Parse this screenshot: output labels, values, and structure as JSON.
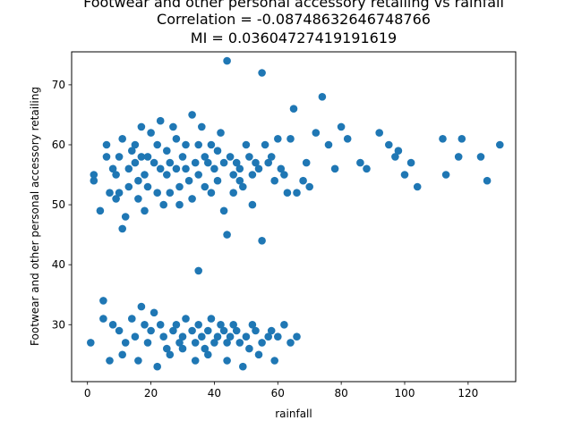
{
  "chart_data": {
    "type": "scatter",
    "title_lines": [
      "Footwear and other personal accessory retailing vs rainfall",
      "Correlation = -0.08748632646748766",
      "MI = 0.03604727419191619"
    ],
    "xlabel": "rainfall",
    "ylabel": "Footwear and other personal accessory retailing",
    "xlim": [
      -5,
      135
    ],
    "ylim": [
      20.5,
      75.5
    ],
    "x_ticks": [
      0,
      20,
      40,
      60,
      80,
      100,
      120
    ],
    "y_ticks": [
      30,
      40,
      50,
      60,
      70
    ],
    "grid": false,
    "point_color": "#1f77b4",
    "series": [
      {
        "x": [
          1,
          2,
          2,
          4,
          5,
          5,
          6,
          6,
          7,
          8,
          9,
          9,
          10,
          10,
          11,
          11,
          12,
          13,
          13,
          14,
          15,
          15,
          16,
          16,
          17,
          17,
          18,
          18,
          19,
          19,
          20,
          21,
          22,
          22,
          23,
          23,
          24,
          25,
          25,
          26,
          26,
          27,
          28,
          28,
          29,
          29,
          30,
          31,
          31,
          32,
          33,
          33,
          34,
          35,
          35,
          36,
          37,
          37,
          38,
          39,
          39,
          40,
          41,
          41,
          42,
          43,
          43,
          44,
          45,
          46,
          46,
          47,
          48,
          48,
          49,
          50,
          51,
          52,
          52,
          53,
          54,
          55,
          56,
          57,
          58,
          59,
          60,
          61,
          62,
          63,
          64,
          65,
          66,
          68,
          69,
          70,
          72,
          74,
          76,
          78,
          80,
          82,
          86,
          88,
          92,
          95,
          97,
          98,
          100,
          102,
          104,
          112,
          113,
          117,
          118,
          124,
          126,
          130,
          8,
          10,
          12,
          14,
          15,
          17,
          18,
          19,
          20,
          21,
          23,
          24,
          25,
          27,
          28,
          29,
          30,
          31,
          33,
          34,
          35,
          36,
          37,
          38,
          39,
          40,
          41,
          42,
          43,
          44,
          45,
          46,
          47,
          48,
          50,
          51,
          52,
          53,
          55,
          57,
          58,
          60,
          62,
          64,
          66,
          7,
          11,
          16,
          22,
          26,
          30,
          34,
          38,
          44,
          49,
          54,
          59,
          44,
          55,
          35
        ],
        "y": [
          27,
          54,
          55,
          49,
          34,
          31,
          60,
          58,
          52,
          56,
          55,
          51,
          58,
          52,
          61,
          46,
          48,
          53,
          56,
          59,
          57,
          60,
          54,
          51,
          58,
          63,
          55,
          49,
          58,
          53,
          62,
          57,
          52,
          60,
          56,
          64,
          50,
          55,
          59,
          52,
          57,
          63,
          56,
          61,
          53,
          50,
          58,
          60,
          56,
          54,
          65,
          51,
          57,
          60,
          55,
          63,
          53,
          58,
          57,
          60,
          52,
          56,
          54,
          59,
          62,
          57,
          49,
          74,
          58,
          55,
          52,
          57,
          56,
          54,
          53,
          60,
          58,
          55,
          50,
          57,
          56,
          72,
          60,
          57,
          58,
          54,
          61,
          56,
          55,
          52,
          61,
          66,
          52,
          54,
          57,
          53,
          62,
          68,
          60,
          56,
          63,
          61,
          57,
          56,
          62,
          60,
          58,
          59,
          55,
          57,
          53,
          61,
          55,
          58,
          61,
          58,
          54,
          60,
          30,
          29,
          27,
          31,
          28,
          33,
          30,
          27,
          29,
          32,
          30,
          28,
          26,
          29,
          30,
          27,
          28,
          31,
          29,
          27,
          30,
          28,
          26,
          29,
          31,
          27,
          28,
          30,
          29,
          27,
          28,
          30,
          29,
          27,
          28,
          26,
          30,
          29,
          27,
          28,
          29,
          28,
          30,
          27,
          28,
          24,
          25,
          24,
          23,
          25,
          26,
          24,
          25,
          24,
          23,
          25,
          24,
          45,
          44,
          39
        ]
      }
    ]
  }
}
